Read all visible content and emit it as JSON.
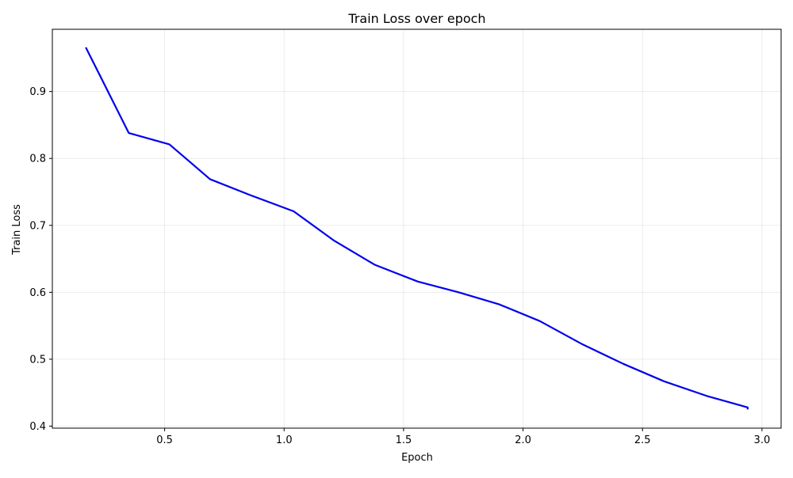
{
  "chart_data": {
    "type": "line",
    "title": "Train Loss over epoch",
    "xlabel": "Epoch",
    "ylabel": "Train Loss",
    "xlim": [
      0.03,
      3.08
    ],
    "ylim": [
      0.397,
      0.993
    ],
    "x_ticks": [
      0.5,
      1.0,
      1.5,
      2.0,
      2.5,
      3.0
    ],
    "x_tick_labels": [
      "0.5",
      "1.0",
      "1.5",
      "2.0",
      "2.5",
      "3.0"
    ],
    "y_ticks": [
      0.4,
      0.5,
      0.6,
      0.7,
      0.8,
      0.9
    ],
    "y_tick_labels": [
      "0.4",
      "0.5",
      "0.6",
      "0.7",
      "0.8",
      "0.9"
    ],
    "grid": true,
    "series": [
      {
        "color": "#0000ee",
        "x": [
          0.17,
          0.35,
          0.52,
          0.69,
          0.86,
          1.04,
          1.21,
          1.38,
          1.56,
          1.73,
          1.9,
          2.07,
          2.25,
          2.42,
          2.59,
          2.77,
          2.94,
          2.94
        ],
        "y": [
          0.966,
          0.838,
          0.821,
          0.769,
          0.745,
          0.721,
          0.677,
          0.641,
          0.616,
          0.6,
          0.582,
          0.557,
          0.522,
          0.493,
          0.467,
          0.445,
          0.428,
          0.425
        ]
      }
    ]
  }
}
